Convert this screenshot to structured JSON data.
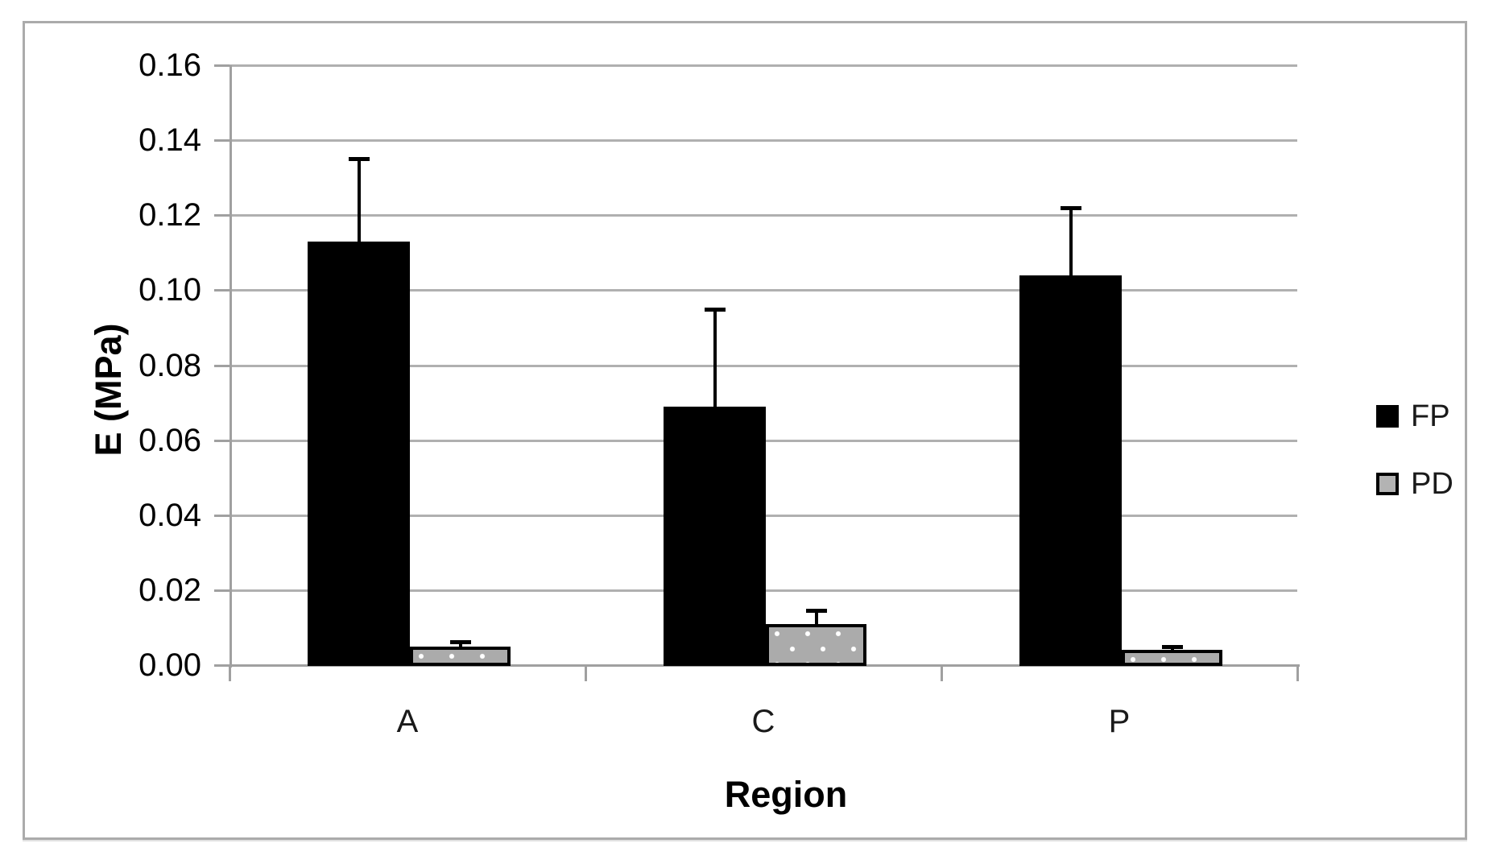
{
  "chart_data": {
    "type": "bar",
    "title": "",
    "xlabel": "Region",
    "ylabel": "E (MPa)",
    "categories": [
      "A",
      "C",
      "P"
    ],
    "series": [
      {
        "name": "FP",
        "values": [
          0.113,
          0.069,
          0.104
        ],
        "errors_plus": [
          0.022,
          0.026,
          0.018
        ],
        "fill": "#000000",
        "pattern": "solid"
      },
      {
        "name": "PD",
        "values": [
          0.005,
          0.011,
          0.004
        ],
        "errors_plus": [
          0.0012,
          0.0035,
          0.001
        ],
        "fill": "#ababab",
        "pattern": "white-dots",
        "border_color": "#000000"
      }
    ],
    "ylim": [
      0,
      0.16
    ],
    "ytick_step": 0.02,
    "ytick_labels": [
      "0.00",
      "0.02",
      "0.04",
      "0.06",
      "0.08",
      "0.10",
      "0.12",
      "0.14",
      "0.16"
    ],
    "grid": "horizontal",
    "legend_position": "right",
    "legend": [
      "FP",
      "PD"
    ],
    "error_bars": "plus-direction-only"
  },
  "colors": {
    "bar_fp": "#000000",
    "bar_pd_fill": "#ababab",
    "pd_dot": "#ffffff",
    "gridline": "#b0b0b0",
    "axis_line": "#a0a0a0",
    "frame_border": "#ababab",
    "text": "#000000"
  }
}
